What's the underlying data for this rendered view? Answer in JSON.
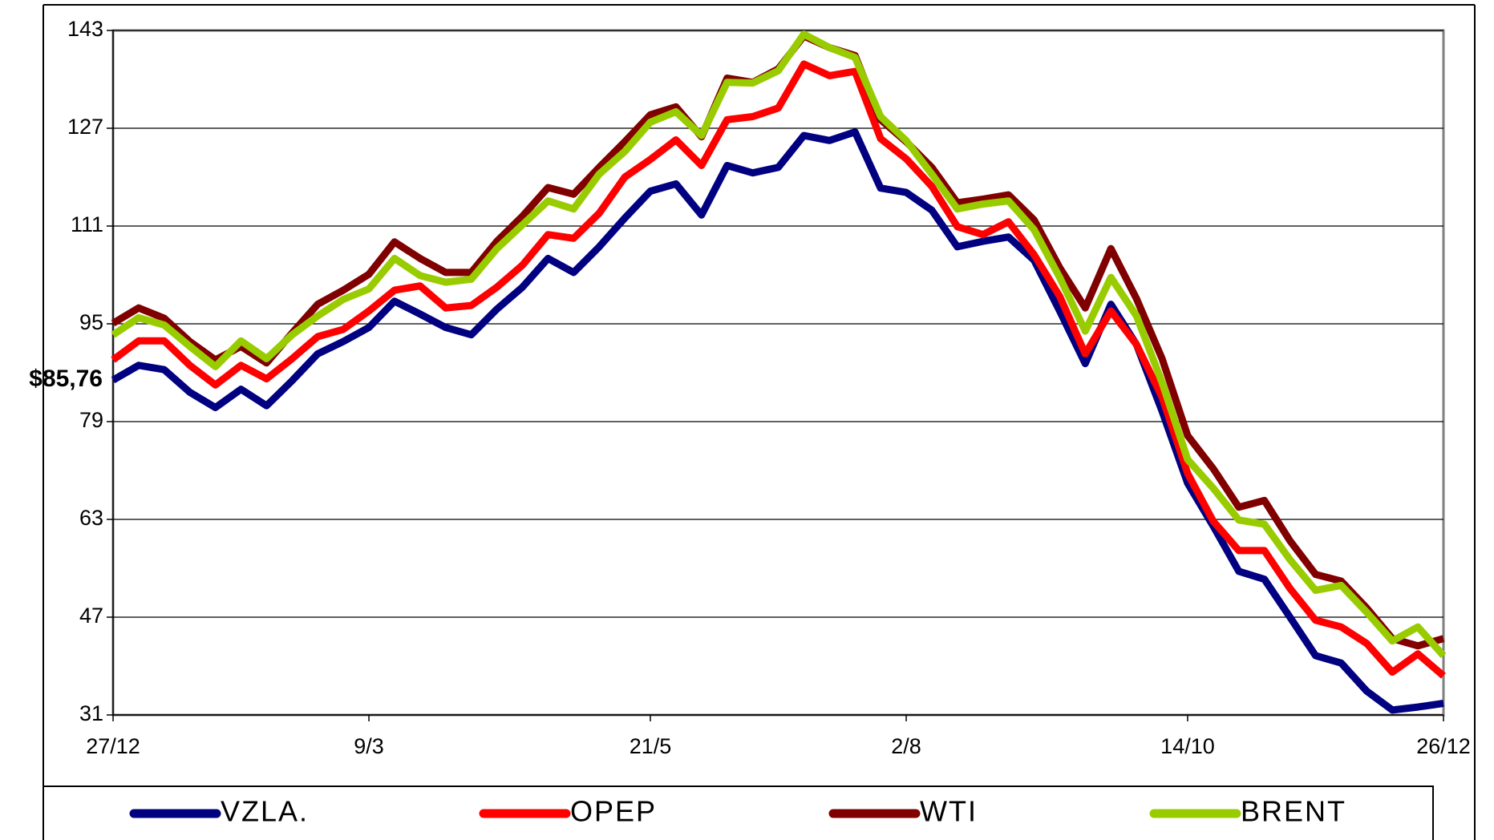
{
  "chart_data": {
    "type": "line",
    "annotation": "$85,76",
    "categories": [
      "27/12",
      null,
      null,
      null,
      null,
      null,
      null,
      null,
      null,
      null,
      "9/3",
      null,
      null,
      null,
      null,
      null,
      null,
      null,
      null,
      null,
      null,
      "21/5",
      null,
      null,
      null,
      null,
      null,
      null,
      null,
      null,
      null,
      "2/8",
      null,
      null,
      null,
      null,
      null,
      null,
      null,
      null,
      null,
      null,
      "14/10",
      null,
      null,
      null,
      null,
      null,
      null,
      null,
      null,
      null,
      "26/12"
    ],
    "ylim": [
      31,
      143
    ],
    "yticks": [
      31,
      47,
      63,
      79,
      95,
      111,
      127,
      143
    ],
    "grid": true,
    "legend": "bottom",
    "series": [
      {
        "name": "VZLA.",
        "color": "#000080",
        "values": [
          85.8,
          88.2,
          87.5,
          83.8,
          81.3,
          84.3,
          81.6,
          85.7,
          90.1,
          92.1,
          94.4,
          98.7,
          96.6,
          94.4,
          93.2,
          97.4,
          101,
          105.7,
          103.4,
          107.6,
          112.3,
          116.7,
          117.9,
          112.8,
          120.9,
          119.7,
          120.6,
          125.8,
          125,
          126.4,
          117.2,
          116.5,
          113.6,
          107.6,
          108.5,
          109.2,
          105.4,
          97.1,
          88.5,
          98.2,
          91.6,
          80.7,
          68.9,
          61.9,
          54.5,
          53.2,
          47,
          40.7,
          39.5,
          34.9,
          31.8,
          32.3,
          32.9
        ]
      },
      {
        "name": "OPEP",
        "color": "#ff0000",
        "values": [
          89.1,
          92.2,
          92.2,
          88.2,
          85,
          88.2,
          86,
          89.3,
          92.9,
          94.1,
          97.1,
          100.5,
          101.2,
          97.6,
          98,
          101,
          104.6,
          109.6,
          109,
          113.1,
          119,
          121.9,
          125.1,
          120.9,
          128.4,
          128.9,
          130.3,
          137.5,
          135.6,
          136.3,
          125.3,
          122,
          117.5,
          110.9,
          109.6,
          111.7,
          106.3,
          99.5,
          90.1,
          97.1,
          91.6,
          83,
          70.5,
          62.7,
          57.9,
          57.9,
          51.7,
          46.5,
          45.4,
          42.7,
          38,
          41,
          37.4
        ]
      },
      {
        "name": "WTI",
        "color": "#800000",
        "values": [
          95.1,
          97.6,
          95.9,
          92.1,
          89.1,
          91.3,
          88.6,
          93.5,
          98.2,
          100.5,
          103.1,
          108.4,
          105.7,
          103.4,
          103.4,
          108.5,
          112.6,
          117.3,
          116.2,
          120.6,
          124.8,
          129.2,
          130.5,
          125.6,
          135.2,
          134.5,
          136.7,
          142.1,
          140.2,
          138.9,
          128.4,
          124.8,
          120.6,
          114.8,
          115.4,
          116.1,
          112,
          104.2,
          97.6,
          107.3,
          99.1,
          89.3,
          76.7,
          71.3,
          65,
          66.1,
          59.5,
          54,
          52.9,
          48.5,
          43.5,
          42.3,
          43.5
        ]
      },
      {
        "name": "BRENT",
        "color": "#99cc00",
        "values": [
          93.2,
          96,
          94.8,
          91.3,
          88,
          92.2,
          89.3,
          93.2,
          96.3,
          99,
          100.7,
          105.7,
          102.9,
          101.8,
          102.3,
          107.3,
          111.2,
          115.1,
          113.8,
          119.5,
          123.2,
          128,
          129.7,
          125.8,
          134.5,
          134.4,
          136.4,
          142.4,
          140.2,
          138.6,
          128.9,
          125,
          119.5,
          113.8,
          114.6,
          115.1,
          110.4,
          102.6,
          93.8,
          102.6,
          96.3,
          85.4,
          72.8,
          68.1,
          62.9,
          62.2,
          56.4,
          51.4,
          52.2,
          47.8,
          43.1,
          45.4,
          40.7
        ]
      }
    ]
  }
}
